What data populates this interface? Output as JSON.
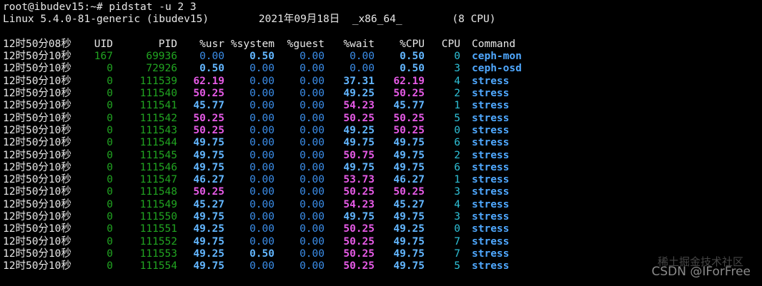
{
  "prompt_line": "root@ibudev15:~# pidstat -u 2 3",
  "sysinfo_line": "Linux 5.4.0-81-generic (ibudev15)        2021年09月18日  _x86_64_        (8 CPU)",
  "header": {
    "time": "12时50分08秒",
    "uid": "UID",
    "pid": "PID",
    "usr": "%usr",
    "system": "%system",
    "guest": "%guest",
    "wait": "%wait",
    "cpu_pct": "%CPU",
    "cpu": "CPU",
    "command": "Command"
  },
  "rows": [
    {
      "time": "12时50分10秒",
      "uid": "167",
      "pid": "69936",
      "usr": "0.00",
      "system": "0.50",
      "guest": "0.00",
      "wait": "0.00",
      "cpu_pct": "0.50",
      "cpu": "0",
      "command": "ceph-mon"
    },
    {
      "time": "12时50分10秒",
      "uid": "0",
      "pid": "72926",
      "usr": "0.50",
      "system": "0.00",
      "guest": "0.00",
      "wait": "0.00",
      "cpu_pct": "0.50",
      "cpu": "3",
      "command": "ceph-osd"
    },
    {
      "time": "12时50分10秒",
      "uid": "0",
      "pid": "111539",
      "usr": "62.19",
      "system": "0.00",
      "guest": "0.00",
      "wait": "37.31",
      "cpu_pct": "62.19",
      "cpu": "4",
      "command": "stress"
    },
    {
      "time": "12时50分10秒",
      "uid": "0",
      "pid": "111540",
      "usr": "50.25",
      "system": "0.00",
      "guest": "0.00",
      "wait": "49.25",
      "cpu_pct": "50.25",
      "cpu": "2",
      "command": "stress"
    },
    {
      "time": "12时50分10秒",
      "uid": "0",
      "pid": "111541",
      "usr": "45.77",
      "system": "0.00",
      "guest": "0.00",
      "wait": "54.23",
      "cpu_pct": "45.77",
      "cpu": "1",
      "command": "stress"
    },
    {
      "time": "12时50分10秒",
      "uid": "0",
      "pid": "111542",
      "usr": "50.25",
      "system": "0.00",
      "guest": "0.00",
      "wait": "50.25",
      "cpu_pct": "50.25",
      "cpu": "5",
      "command": "stress"
    },
    {
      "time": "12时50分10秒",
      "uid": "0",
      "pid": "111543",
      "usr": "50.25",
      "system": "0.00",
      "guest": "0.00",
      "wait": "49.25",
      "cpu_pct": "50.25",
      "cpu": "0",
      "command": "stress"
    },
    {
      "time": "12时50分10秒",
      "uid": "0",
      "pid": "111544",
      "usr": "49.75",
      "system": "0.00",
      "guest": "0.00",
      "wait": "49.75",
      "cpu_pct": "49.75",
      "cpu": "6",
      "command": "stress"
    },
    {
      "time": "12时50分10秒",
      "uid": "0",
      "pid": "111545",
      "usr": "49.75",
      "system": "0.00",
      "guest": "0.00",
      "wait": "50.75",
      "cpu_pct": "49.75",
      "cpu": "2",
      "command": "stress"
    },
    {
      "time": "12时50分10秒",
      "uid": "0",
      "pid": "111546",
      "usr": "49.75",
      "system": "0.00",
      "guest": "0.00",
      "wait": "49.75",
      "cpu_pct": "49.75",
      "cpu": "6",
      "command": "stress"
    },
    {
      "time": "12时50分10秒",
      "uid": "0",
      "pid": "111547",
      "usr": "46.27",
      "system": "0.00",
      "guest": "0.00",
      "wait": "53.73",
      "cpu_pct": "46.27",
      "cpu": "1",
      "command": "stress"
    },
    {
      "time": "12时50分10秒",
      "uid": "0",
      "pid": "111548",
      "usr": "50.25",
      "system": "0.00",
      "guest": "0.00",
      "wait": "50.25",
      "cpu_pct": "50.25",
      "cpu": "3",
      "command": "stress"
    },
    {
      "time": "12时50分10秒",
      "uid": "0",
      "pid": "111549",
      "usr": "45.27",
      "system": "0.00",
      "guest": "0.00",
      "wait": "54.23",
      "cpu_pct": "45.27",
      "cpu": "4",
      "command": "stress"
    },
    {
      "time": "12时50分10秒",
      "uid": "0",
      "pid": "111550",
      "usr": "49.75",
      "system": "0.00",
      "guest": "0.00",
      "wait": "49.75",
      "cpu_pct": "49.75",
      "cpu": "3",
      "command": "stress"
    },
    {
      "time": "12时50分10秒",
      "uid": "0",
      "pid": "111551",
      "usr": "49.25",
      "system": "0.00",
      "guest": "0.00",
      "wait": "50.25",
      "cpu_pct": "49.25",
      "cpu": "0",
      "command": "stress"
    },
    {
      "time": "12时50分10秒",
      "uid": "0",
      "pid": "111552",
      "usr": "49.75",
      "system": "0.00",
      "guest": "0.00",
      "wait": "50.25",
      "cpu_pct": "49.75",
      "cpu": "7",
      "command": "stress"
    },
    {
      "time": "12时50分10秒",
      "uid": "0",
      "pid": "111553",
      "usr": "49.25",
      "system": "0.50",
      "guest": "0.00",
      "wait": "50.25",
      "cpu_pct": "49.75",
      "cpu": "7",
      "command": "stress"
    },
    {
      "time": "12时50分10秒",
      "uid": "0",
      "pid": "111554",
      "usr": "49.75",
      "system": "0.00",
      "guest": "0.00",
      "wait": "50.25",
      "cpu_pct": "49.75",
      "cpu": "5",
      "command": "stress"
    }
  ],
  "watermark": {
    "top": "稀土掘金技术社区",
    "bottom": "CSDN @IForFree"
  },
  "colors": {
    "background": "#000000",
    "uid_pid": "#21a521",
    "zero_value": "#3b8eea",
    "low_value": "#62b6ff",
    "high_value": "#e65ae6",
    "cpu_index": "#2ec0d6",
    "command": "#4fa8ff"
  }
}
